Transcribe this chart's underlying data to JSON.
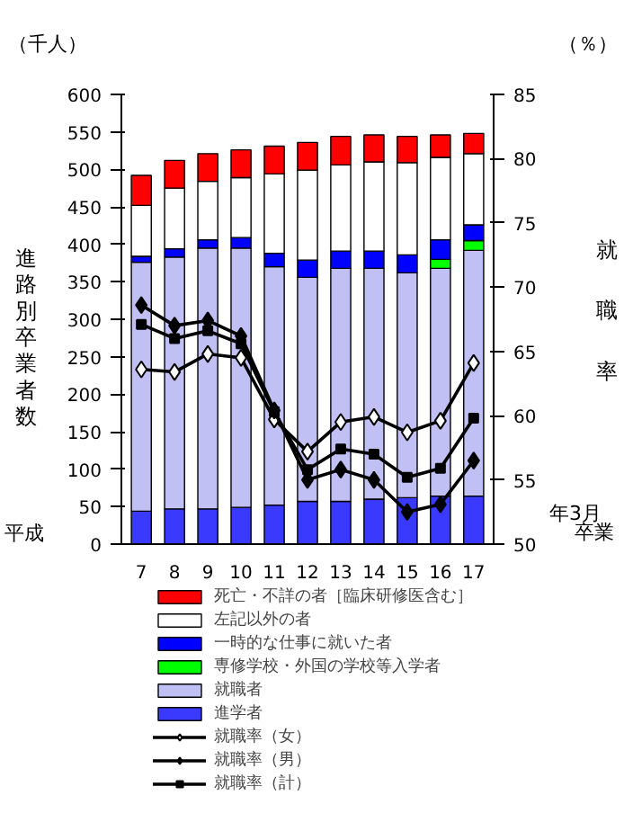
{
  "chart_data": {
    "type": "bar",
    "stacked": true,
    "ylabel": "進路別卒業者数",
    "y2label": "就職率",
    "annotations": [
      "（千人）",
      "（％）",
      "平成",
      "年3月",
      "卒業"
    ],
    "categories": [
      "7",
      "8",
      "9",
      "10",
      "11",
      "12",
      "13",
      "14",
      "15",
      "16",
      "17"
    ],
    "series": [
      {
        "name": "進学者",
        "color": "#3a3aff",
        "values": [
          44,
          47,
          47,
          49,
          52,
          57,
          57,
          60,
          62,
          64,
          64
        ]
      },
      {
        "name": "就職者",
        "color": "#c0c0f4",
        "values": [
          332,
          336,
          348,
          346,
          318,
          299,
          311,
          308,
          300,
          304,
          328
        ]
      },
      {
        "name": "専修学校・外国の学校等入学者",
        "color": "#00ff00",
        "values": [
          null,
          null,
          null,
          null,
          null,
          null,
          null,
          null,
          null,
          12,
          13
        ]
      },
      {
        "name": "一時的な仕事に就いた者",
        "color": "#0000ff",
        "values": [
          8,
          11,
          11,
          14,
          18,
          23,
          23,
          23,
          24,
          26,
          21
        ]
      },
      {
        "name": "左記以外の者",
        "color": "#ffffff",
        "values": [
          68,
          81,
          78,
          80,
          106,
          120,
          115,
          119,
          123,
          110,
          95
        ]
      },
      {
        "name": "死亡・不詳の者［臨床研修医含む］",
        "color": "#ff0000",
        "values": [
          40,
          37,
          37,
          37,
          37,
          37,
          38,
          36,
          35,
          30,
          27
        ]
      },
      {
        "name": "就職率（女）",
        "type": "line",
        "axis": "y2",
        "color": "#000000",
        "marker": "diamond",
        "values": [
          63.6,
          63.4,
          64.8,
          64.5,
          59.7,
          57.2,
          59.5,
          59.9,
          58.7,
          59.6,
          64.1
        ]
      },
      {
        "name": "就職率（男）",
        "type": "line",
        "axis": "y2",
        "color": "#000000",
        "marker": "diamond",
        "values": [
          68.6,
          67.0,
          67.4,
          66.2,
          60.4,
          55.0,
          55.8,
          55.0,
          52.5,
          53.1,
          56.5
        ]
      },
      {
        "name": "就職率（計）",
        "type": "line",
        "axis": "y2",
        "color": "#000000",
        "marker": "square",
        "values": [
          67.1,
          66.0,
          66.6,
          65.6,
          60.3,
          55.8,
          57.4,
          57.0,
          55.2,
          55.9,
          59.8
        ]
      }
    ],
    "ylim": [
      0,
      600
    ],
    "yticks": [
      0,
      50,
      100,
      150,
      200,
      250,
      300,
      350,
      400,
      450,
      500,
      550,
      600
    ],
    "y2lim": [
      50,
      85
    ],
    "y2ticks": [
      50,
      55,
      60,
      65,
      70,
      75,
      80,
      85
    ],
    "grid": false,
    "legend": "bottom"
  }
}
